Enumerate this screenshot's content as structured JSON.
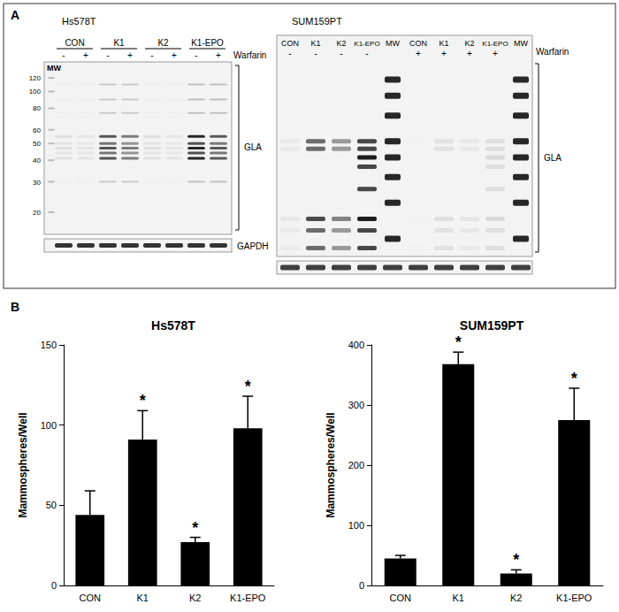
{
  "figure_labels": [
    "A",
    "B"
  ],
  "blots": [
    {
      "title": "Hs578T",
      "mw_label": "MW",
      "mw_markers": [
        120,
        100,
        80,
        60,
        50,
        40,
        30,
        20
      ],
      "lanes": [
        {
          "label": "CON",
          "warfarin": "-"
        },
        {
          "label": "CON",
          "warfarin": "+"
        },
        {
          "label": "K1",
          "warfarin": "-"
        },
        {
          "label": "K1",
          "warfarin": "+"
        },
        {
          "label": "K2",
          "warfarin": "-"
        },
        {
          "label": "K2",
          "warfarin": "+"
        },
        {
          "label": "K1-EPO",
          "warfarin": "-"
        },
        {
          "label": "K1-EPO",
          "warfarin": "+"
        }
      ],
      "warfarin_label": "Warfarin",
      "target": "GLA",
      "loading_control": "GAPDH"
    },
    {
      "title": "SUM159PT",
      "lanes": [
        {
          "label": "CON",
          "warfarin": "-"
        },
        {
          "label": "K1",
          "warfarin": "-"
        },
        {
          "label": "K2",
          "warfarin": "-"
        },
        {
          "label": "K1-EPO",
          "warfarin": "-"
        },
        {
          "label": "MW"
        },
        {
          "label": "CON",
          "warfarin": "+"
        },
        {
          "label": "K1",
          "warfarin": "+"
        },
        {
          "label": "K2",
          "warfarin": "+"
        },
        {
          "label": "K1-EPO",
          "warfarin": "+"
        },
        {
          "label": "MW"
        }
      ],
      "warfarin_label": "Warfarin",
      "target": "GLA"
    }
  ],
  "chart_data": [
    {
      "type": "bar",
      "title": "Hs578T",
      "y_label": "Mammospheres/Well",
      "categories": [
        "CON",
        "K1",
        "K2",
        "K1-EPO"
      ],
      "values": [
        44,
        91,
        27,
        98
      ],
      "errors": [
        15,
        18,
        3,
        20
      ],
      "annotations": [
        null,
        "*",
        "*",
        "*"
      ],
      "color": "#000000",
      "ylim": [
        0,
        150
      ],
      "yticks": [
        0,
        50,
        100,
        150
      ],
      "grid": false
    },
    {
      "type": "bar",
      "title": "SUM159PT",
      "y_label": "Mammospheres/Well",
      "categories": [
        "CON",
        "K1",
        "K2",
        "K1-EPO"
      ],
      "values": [
        45,
        368,
        20,
        275
      ],
      "errors": [
        5,
        20,
        6,
        53
      ],
      "annotations": [
        null,
        "*",
        "*",
        "*"
      ],
      "color": "#000000",
      "ylim": [
        0,
        400
      ],
      "yticks": [
        0,
        100,
        200,
        300,
        400
      ],
      "grid": false
    }
  ]
}
